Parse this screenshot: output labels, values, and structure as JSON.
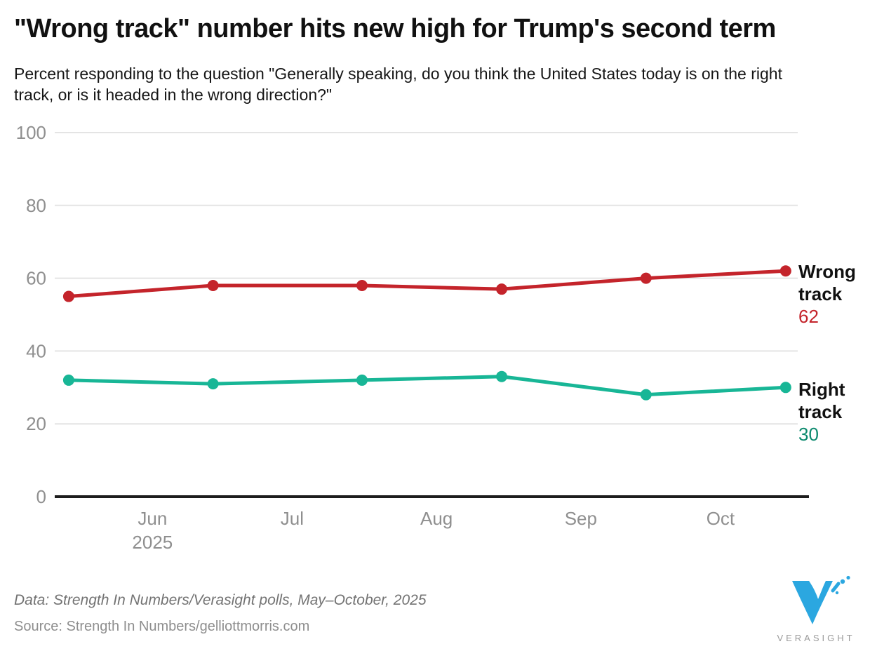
{
  "page": {
    "footer": {
      "data_note": "Data: Strength In Numbers/Verasight polls, May–October, 2025",
      "source_note": "Source: Strength In Numbers/gelliottmorris.com"
    },
    "logo": {
      "text": "VERASIGHT",
      "color": "#2BA7E0",
      "text_color": "#9B9B9B"
    }
  },
  "chart_data": {
    "type": "line",
    "title": "\"Wrong track\" number hits new high for Trump's second term",
    "subtitle": "Percent responding to the question \"Generally speaking, do you think the United States today is on the right track, or is it headed in the wrong direction?\"",
    "x": [
      "2025-05-14",
      "2025-06-14",
      "2025-07-16",
      "2025-08-15",
      "2025-09-15",
      "2025-10-15"
    ],
    "series": [
      {
        "name": "Wrong track",
        "color": "#C4242B",
        "label_color": "#C4242B",
        "values": [
          55,
          58,
          58,
          57,
          60,
          62
        ]
      },
      {
        "name": "Right track",
        "color": "#18B696",
        "label_color": "#0C8A6E",
        "values": [
          32,
          31,
          32,
          33,
          28,
          30
        ]
      }
    ],
    "ylim": [
      0,
      100
    ],
    "yticks": [
      0,
      20,
      40,
      60,
      80,
      100
    ],
    "x_axis": {
      "domain": [
        "2025-05-11",
        "2025-10-20"
      ],
      "ticks": [
        {
          "label": "Jun",
          "sublabel": "2025",
          "date": "2025-06-01"
        },
        {
          "label": "Jul",
          "date": "2025-07-01"
        },
        {
          "label": "Aug",
          "date": "2025-08-01"
        },
        {
          "label": "Sep",
          "date": "2025-09-01"
        },
        {
          "label": "Oct",
          "date": "2025-10-01"
        }
      ]
    },
    "grid": "horizontal-only",
    "legend_position": "end-of-line-labels"
  }
}
